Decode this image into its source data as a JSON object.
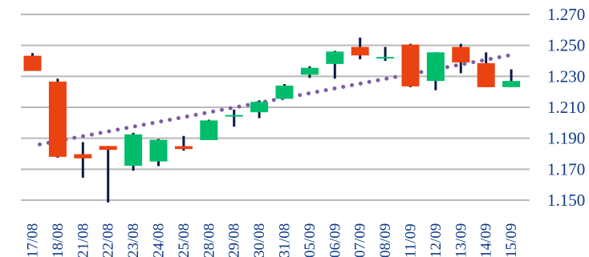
{
  "chart_data": {
    "type": "candlestick",
    "title": "",
    "xlabel": "",
    "ylabel": "",
    "ylim": [
      1.15,
      1.27
    ],
    "y_ticks": [
      "1.270",
      "1.250",
      "1.230",
      "1.210",
      "1.190",
      "1.170",
      "1.150"
    ],
    "y_tick_values": [
      1.27,
      1.25,
      1.23,
      1.21,
      1.19,
      1.17,
      1.15
    ],
    "grid": true,
    "categories": [
      "17/08",
      "18/08",
      "21/08",
      "22/08",
      "23/08",
      "24/08",
      "25/08",
      "28/08",
      "29/08",
      "30/08",
      "31/08",
      "05/09",
      "06/09",
      "07/09",
      "08/09",
      "11/09",
      "12/09",
      "13/09",
      "14/09",
      "15/09"
    ],
    "series": [
      {
        "open": [
          1.2433,
          1.2266,
          1.1797,
          1.185,
          1.1722,
          1.175,
          1.1849,
          1.1888,
          1.2045,
          1.2068,
          1.2155,
          1.231,
          1.238,
          1.249,
          1.242,
          1.2505,
          1.227,
          1.249,
          1.2385,
          1.223
        ],
        "high": [
          1.245,
          1.2285,
          1.1875,
          1.185,
          1.1935,
          1.1895,
          1.1915,
          1.202,
          1.2085,
          1.2145,
          1.225,
          1.2365,
          1.2465,
          1.255,
          1.249,
          1.251,
          1.2455,
          1.251,
          1.2455,
          1.2345
        ],
        "low": [
          1.2335,
          1.1775,
          1.1645,
          1.1485,
          1.169,
          1.172,
          1.182,
          1.1888,
          1.1975,
          1.203,
          1.2155,
          1.229,
          1.2285,
          1.241,
          1.24,
          1.223,
          1.221,
          1.232,
          1.223,
          1.223
        ],
        "close": [
          1.2335,
          1.178,
          1.177,
          1.1825,
          1.1925,
          1.189,
          1.183,
          1.2015,
          1.2045,
          1.2135,
          1.224,
          1.2355,
          1.246,
          1.2435,
          1.242,
          1.2235,
          1.2455,
          1.239,
          1.223,
          1.227
        ]
      }
    ],
    "trend": {
      "style": "dotted",
      "start": 1.186,
      "end": 1.244
    },
    "colors": {
      "up": "#00bd6c",
      "down": "#ea4210",
      "wick": "#0a1a45",
      "trend": "#7d5da5",
      "grid": "#b9b9b9",
      "tick_text": "#103a86"
    }
  }
}
